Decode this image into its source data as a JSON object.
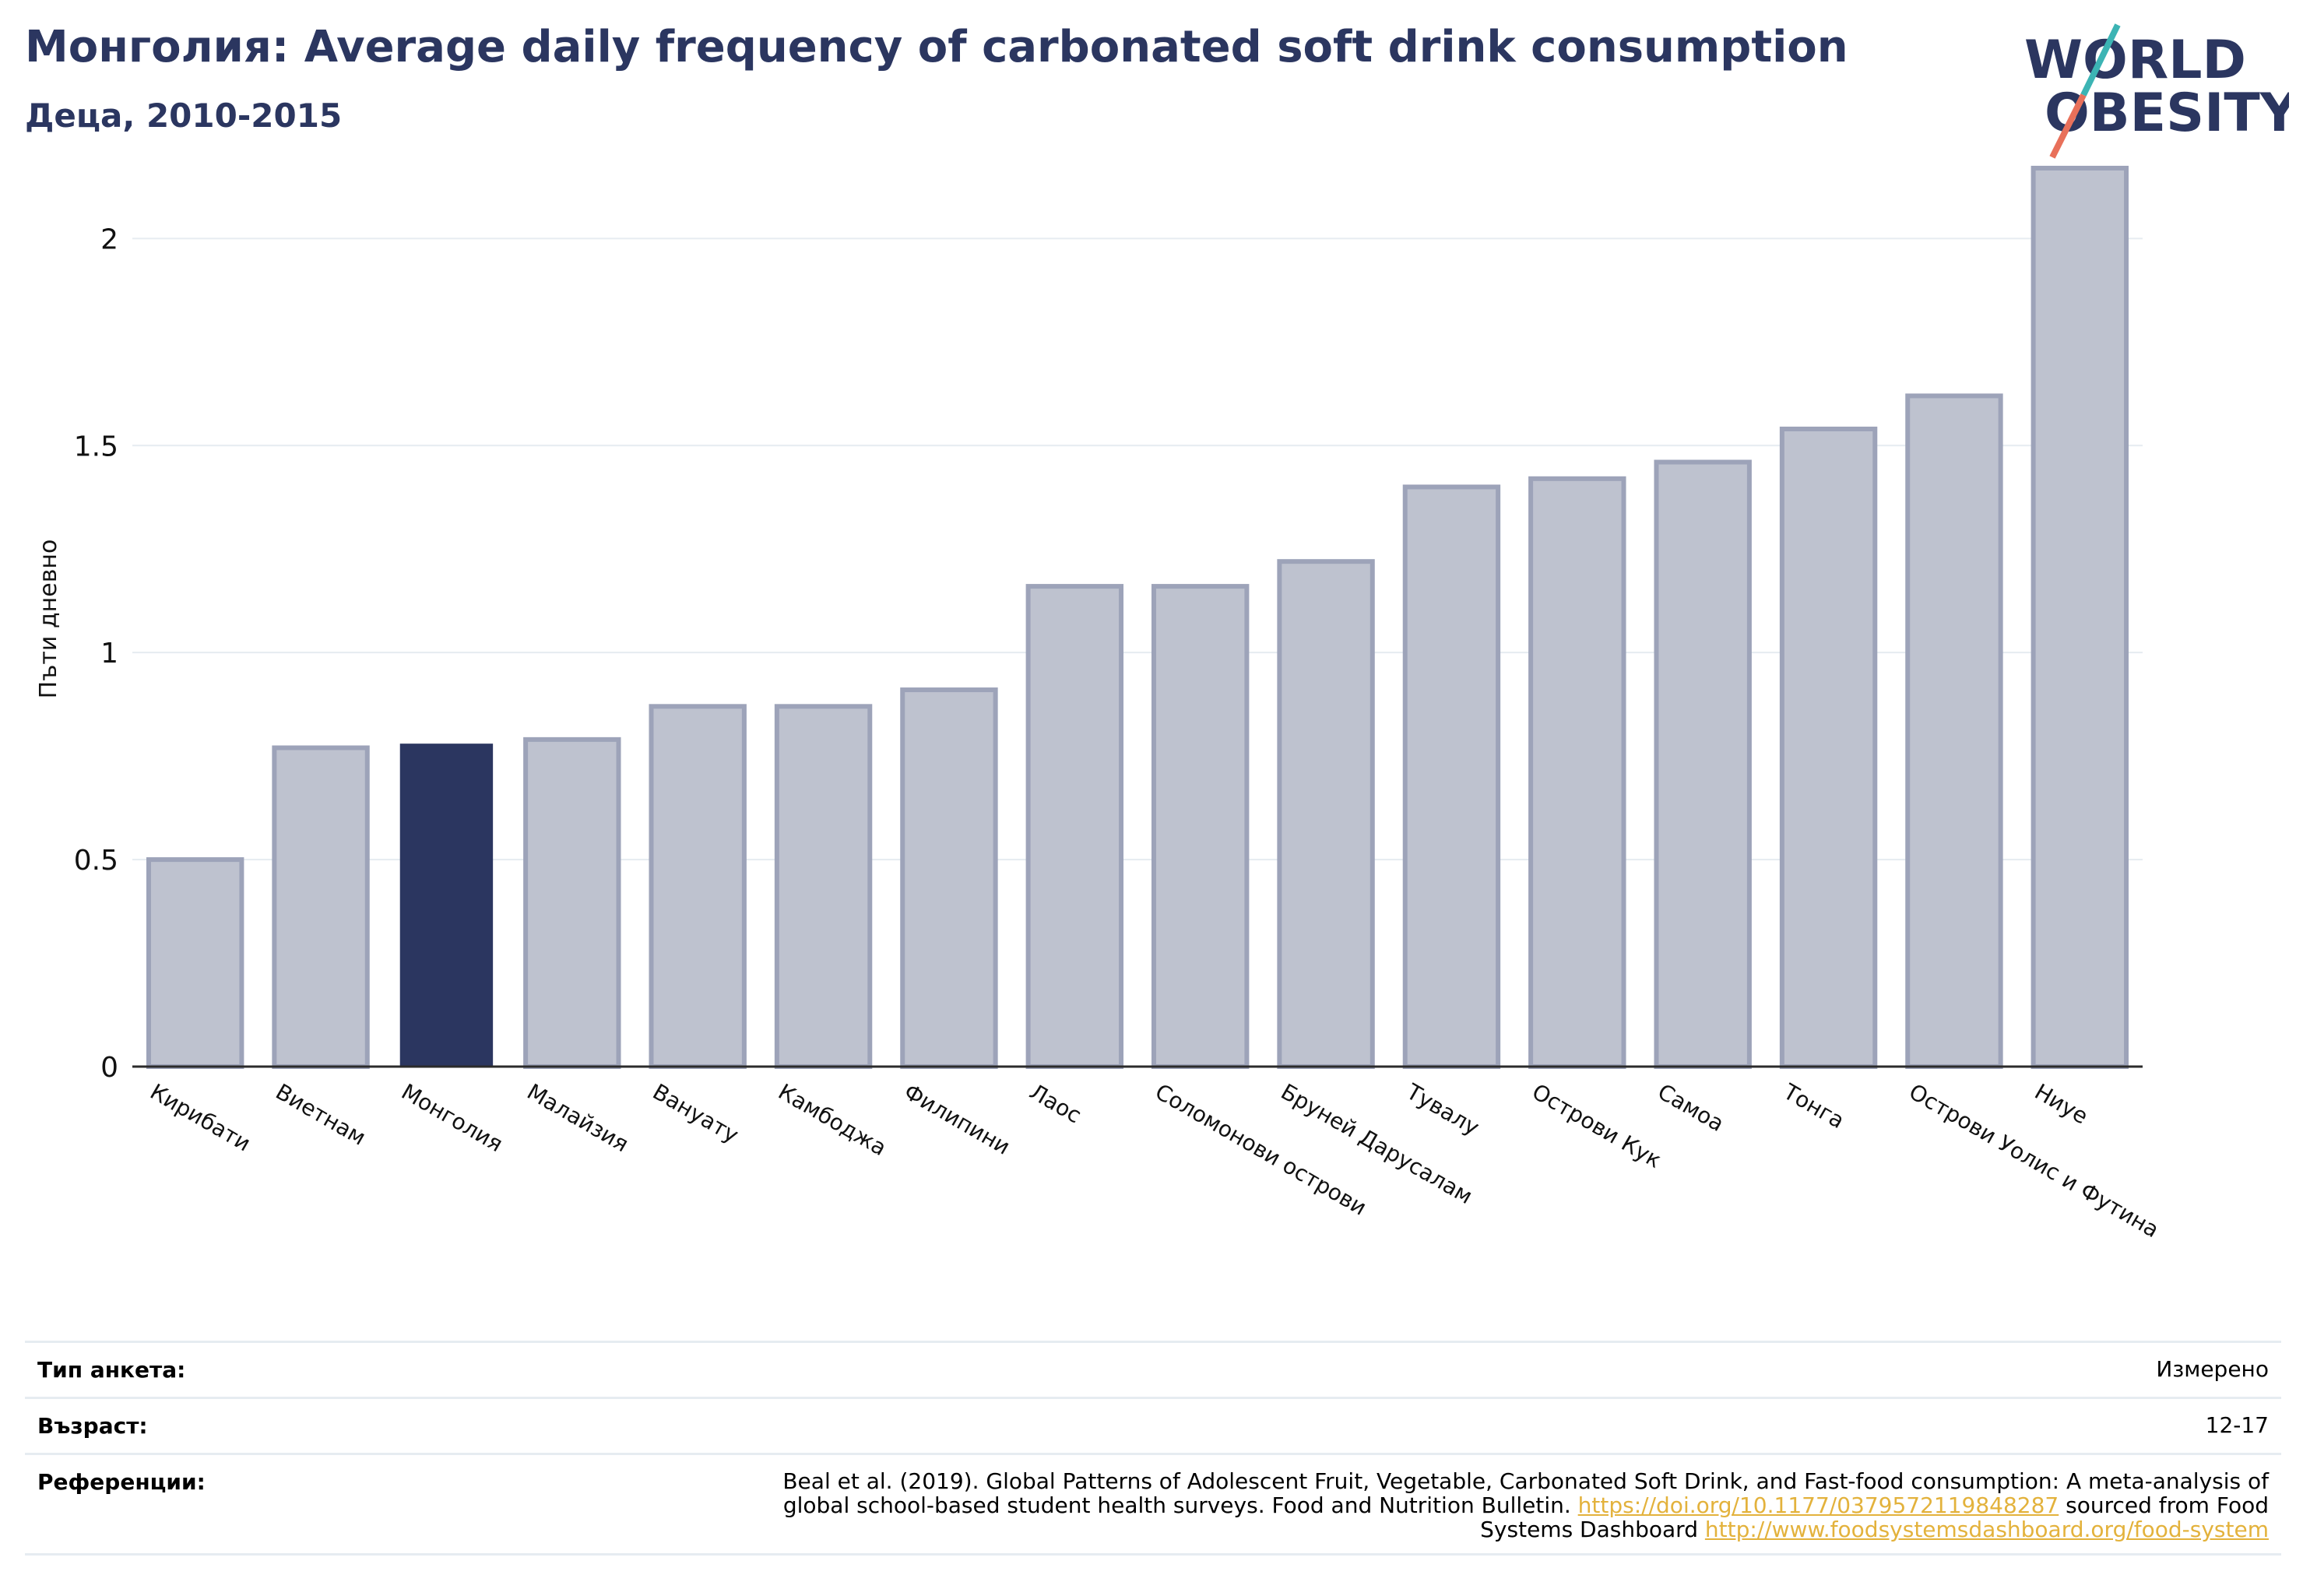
{
  "header": {
    "title": "Монголия: Average daily frequency of carbonated soft drink consumption",
    "subtitle": "Деца, 2010-2015",
    "logo_line1": "WORLD",
    "logo_line2": "OBESITY"
  },
  "colors": {
    "highlight": "#2b3660",
    "bar": "#bec2cf",
    "bar_stroke": "#9da3b9",
    "logo_text": "#2b3660",
    "logo_slash_top": "#3cb4b4",
    "logo_slash_bottom": "#e8705a",
    "link": "#e3b23c"
  },
  "chart_data": {
    "type": "bar",
    "categories": [
      "Кирибати",
      "Виетнам",
      "Монголия",
      "Малайзия",
      "Вануату",
      "Камбоджа",
      "Филипини",
      "Лаос",
      "Соломонови острови",
      "Бруней Дарусалам",
      "Тувалу",
      "Острови Кук",
      "Самоа",
      "Тонга",
      "Острови Уолис и Футина",
      "Ниуе"
    ],
    "values": [
      0.5,
      0.77,
      0.78,
      0.79,
      0.87,
      0.87,
      0.91,
      1.16,
      1.16,
      1.22,
      1.4,
      1.42,
      1.46,
      1.54,
      1.62,
      2.17
    ],
    "highlight": "Монголия",
    "ylabel": "Пъти дневно",
    "ylim": [
      0,
      2.2
    ],
    "yticks": [
      0,
      0.5,
      1,
      1.5,
      2
    ],
    "ytick_labels": [
      "0",
      "0.5",
      "1",
      "1.5",
      "2"
    ],
    "grid": true
  },
  "footer": {
    "survey_label": "Тип анкета:",
    "survey_value": "Измерено",
    "age_label": "Възраст:",
    "age_value": "12-17",
    "ref_label": "Референции:",
    "ref_text": "Beal et al. (2019). Global Patterns of Adolescent Fruit, Vegetable, Carbonated Soft Drink, and Fast-food consumption: A meta-analysis of global school-based student health surveys. Food and Nutrition Bulletin.",
    "ref_link1": "https://doi.org/10.1177/0379572119848287",
    "ref_mid": "sourced from Food Systems Dashboard",
    "ref_link2": "http://www.foodsystemsdashboard.org/food-system"
  }
}
